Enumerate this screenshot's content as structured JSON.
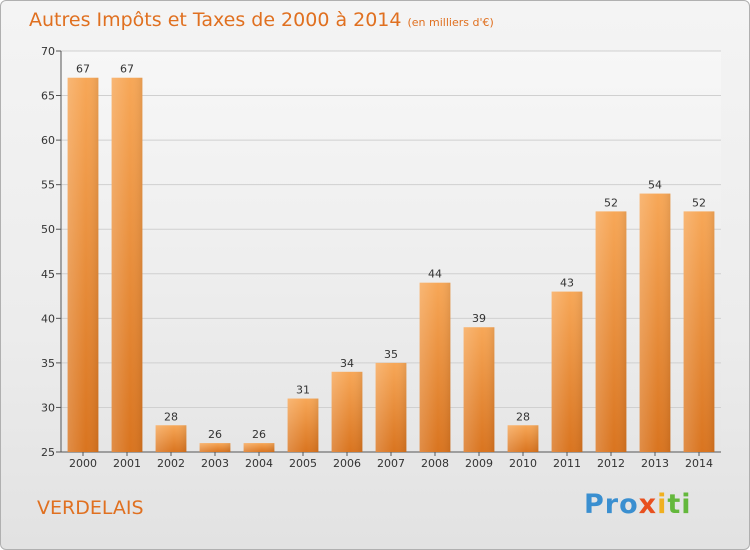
{
  "title": "Autres Impôts et Taxes de 2000 à 2014",
  "unit": "(en milliers d'€)",
  "commune": "VERDELAIS",
  "logo": {
    "p1": "Pro",
    "p2": "x",
    "p3": "i",
    "p4": "ti"
  },
  "colors": {
    "bar_light": "#f7a757",
    "bar_dark": "#d9741f",
    "text_accent": "#e07020"
  },
  "chart_data": {
    "type": "bar",
    "title": "Autres Impôts et Taxes de 2000 à 2014",
    "categories": [
      "2000",
      "2001",
      "2002",
      "2003",
      "2004",
      "2005",
      "2006",
      "2007",
      "2008",
      "2009",
      "2010",
      "2011",
      "2012",
      "2013",
      "2014"
    ],
    "values": [
      67,
      67,
      28,
      26,
      26,
      31,
      34,
      35,
      44,
      39,
      28,
      43,
      52,
      54,
      52
    ],
    "ylim": [
      25,
      70
    ],
    "yticks": [
      25,
      30,
      35,
      40,
      45,
      50,
      55,
      60,
      65,
      70
    ],
    "grid": true,
    "xlabel": "",
    "ylabel": ""
  }
}
